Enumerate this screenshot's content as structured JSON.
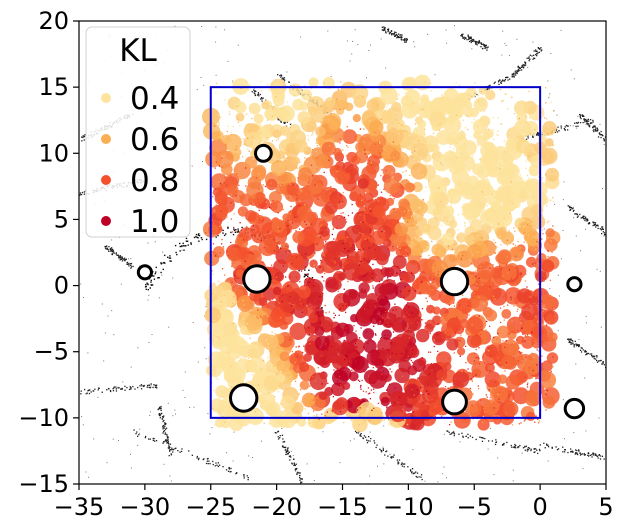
{
  "chart_data": {
    "type": "scatter",
    "title": "",
    "xlabel": "",
    "ylabel": "",
    "xlim": [
      -35,
      5
    ],
    "ylim": [
      -15,
      20
    ],
    "x_ticks": [
      -35,
      -30,
      -25,
      -20,
      -15,
      -10,
      -5,
      0,
      5
    ],
    "y_ticks": [
      -15,
      -10,
      -5,
      0,
      5,
      10,
      15,
      20
    ],
    "x_tick_labels": [
      "−35",
      "−30",
      "−25",
      "−20",
      "−15",
      "−10",
      "−5",
      "0",
      "5"
    ],
    "y_tick_labels": [
      "−15",
      "−10",
      "−5",
      "0",
      "5",
      "10",
      "15",
      "20"
    ],
    "grid": false,
    "legend": {
      "title": "KL",
      "placement": "top-left",
      "entries": [
        {
          "label": "0.4",
          "value": 0.4,
          "color": "#fde39c"
        },
        {
          "label": "0.6",
          "value": 0.6,
          "color": "#fbad52"
        },
        {
          "label": "0.8",
          "value": 0.8,
          "color": "#f4502d"
        },
        {
          "label": "1.0",
          "value": 1.0,
          "color": "#bd0026"
        }
      ]
    },
    "colormap": "YlOrRd",
    "region_box": {
      "x": [
        -25,
        0
      ],
      "y": [
        -10,
        15
      ],
      "color": "#0000cc"
    },
    "kl_clusters": [
      {
        "x": -12,
        "y": -3,
        "kl": 1.0
      },
      {
        "x": -16,
        "y": -4,
        "kl": 0.95
      },
      {
        "x": -8,
        "y": -5,
        "kl": 0.9
      },
      {
        "x": -17,
        "y": 0,
        "kl": 0.85
      },
      {
        "x": -13,
        "y": 9,
        "kl": 0.85
      },
      {
        "x": -3,
        "y": 0,
        "kl": 0.8
      },
      {
        "x": -20,
        "y": 5,
        "kl": 0.8
      },
      {
        "x": -24,
        "y": 7,
        "kl": 0.75
      },
      {
        "x": -4,
        "y": -8,
        "kl": 0.75
      },
      {
        "x": -6,
        "y": -2,
        "kl": 0.7
      },
      {
        "x": -10,
        "y": 12,
        "kl": 0.35
      },
      {
        "x": -5,
        "y": 6,
        "kl": 0.35
      },
      {
        "x": -20,
        "y": 12,
        "kl": 0.4
      },
      {
        "x": -22,
        "y": -7,
        "kl": 0.35
      }
    ],
    "obstacles": [
      {
        "type": "circle",
        "x": -21.5,
        "y": 0.5,
        "r": 1.0
      },
      {
        "type": "circle",
        "x": -6.5,
        "y": 0.3,
        "r": 1.0
      },
      {
        "type": "circle",
        "x": -22.5,
        "y": -8.5,
        "r": 1.0
      },
      {
        "type": "circle",
        "x": -6.5,
        "y": -8.8,
        "r": 0.9
      },
      {
        "type": "circle",
        "x": 2.6,
        "y": -9.3,
        "r": 0.7
      },
      {
        "type": "circle",
        "x": -30,
        "y": 1.0,
        "r": 0.5
      },
      {
        "type": "circle",
        "x": -21,
        "y": 10,
        "r": 0.6
      },
      {
        "type": "circle",
        "x": 2.6,
        "y": 0.1,
        "r": 0.5
      }
    ]
  }
}
